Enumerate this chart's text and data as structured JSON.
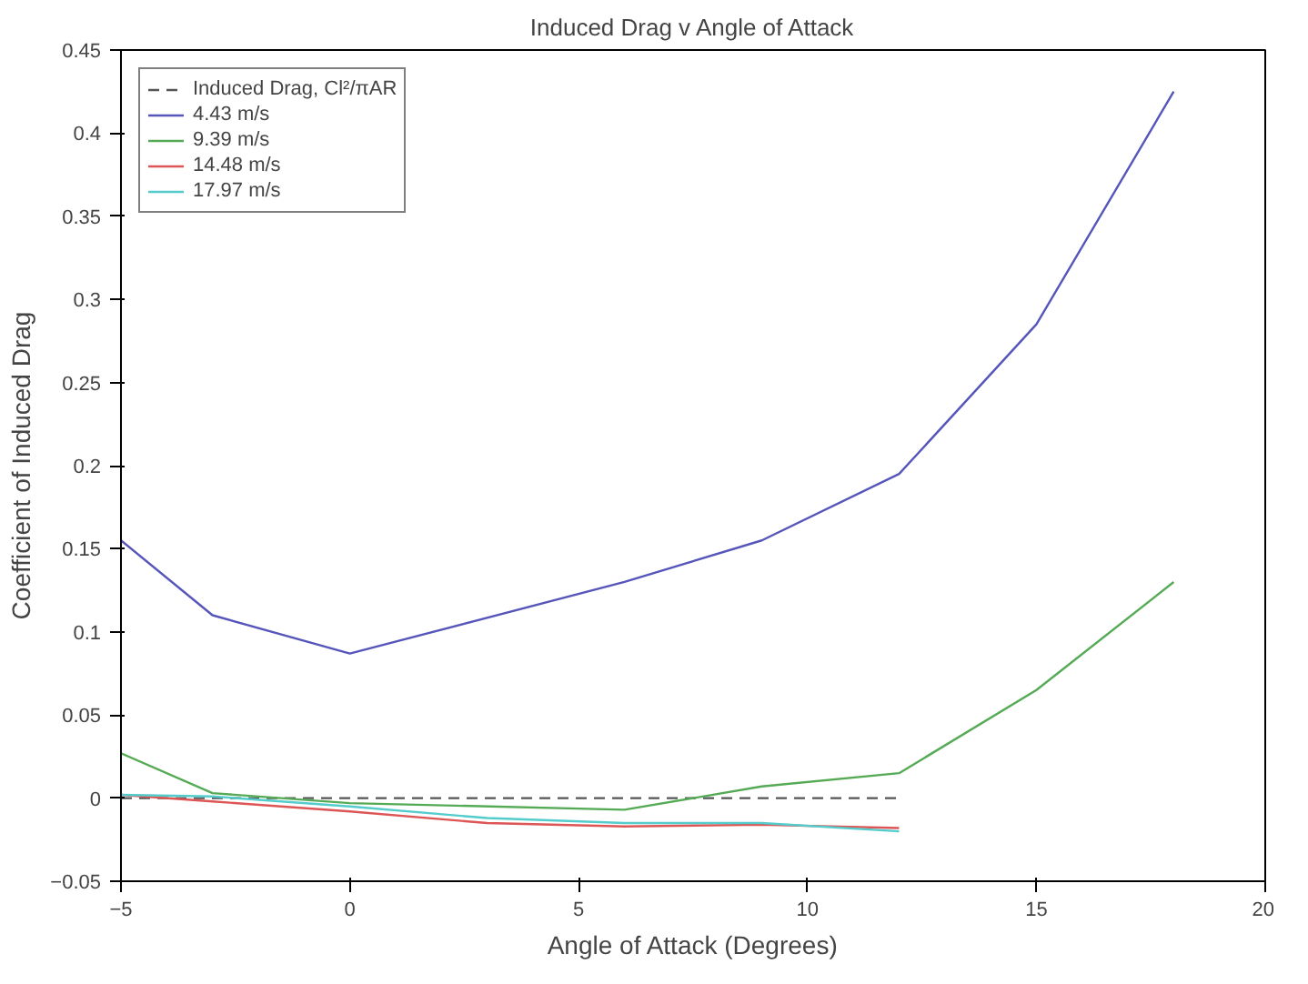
{
  "chart_data": {
    "type": "line",
    "title": "Induced Drag v Angle of Attack",
    "xlabel": "Angle of Attack (Degrees)",
    "ylabel": "Coefficient of Induced Drag",
    "xlim": [
      -5,
      20
    ],
    "ylim": [
      -0.05,
      0.45
    ],
    "xticks": [
      -5,
      0,
      5,
      10,
      15,
      20
    ],
    "yticks": [
      -0.05,
      0,
      0.05,
      0.1,
      0.15,
      0.2,
      0.25,
      0.3,
      0.35,
      0.4,
      0.45
    ],
    "grid": false,
    "legend": "top left",
    "marker": "none",
    "series": [
      {
        "name": "Induced Drag, Cl²/πAR",
        "color": "#555555",
        "line_style": "dashed",
        "x": [
          -5,
          12
        ],
        "values": [
          0,
          0
        ]
      },
      {
        "name": "4.43 m/s",
        "color": "#5555bb",
        "x": [
          -5,
          -3,
          0,
          6,
          9,
          12,
          15,
          18
        ],
        "values": [
          0.155,
          0.11,
          0.087,
          0.13,
          0.155,
          0.195,
          0.285,
          0.425
        ]
      },
      {
        "name": "9.39 m/s",
        "color": "#55aa55",
        "x": [
          -5,
          -3,
          0,
          6,
          9,
          12,
          15,
          18
        ],
        "values": [
          0.027,
          0.003,
          -0.003,
          -0.007,
          0.007,
          0.015,
          0.065,
          0.13
        ]
      },
      {
        "name": "14.48 m/s",
        "color": "#dd5555",
        "x": [
          -5,
          -3,
          0,
          3,
          6,
          9,
          12
        ],
        "values": [
          0.002,
          -0.002,
          -0.008,
          -0.015,
          -0.017,
          -0.016,
          -0.018
        ]
      },
      {
        "name": "17.97 m/s",
        "color": "#55cccc",
        "x": [
          -5,
          -3,
          0,
          3,
          6,
          9,
          12
        ],
        "values": [
          0.002,
          0.001,
          -0.005,
          -0.012,
          -0.015,
          -0.015,
          -0.02
        ]
      }
    ]
  }
}
